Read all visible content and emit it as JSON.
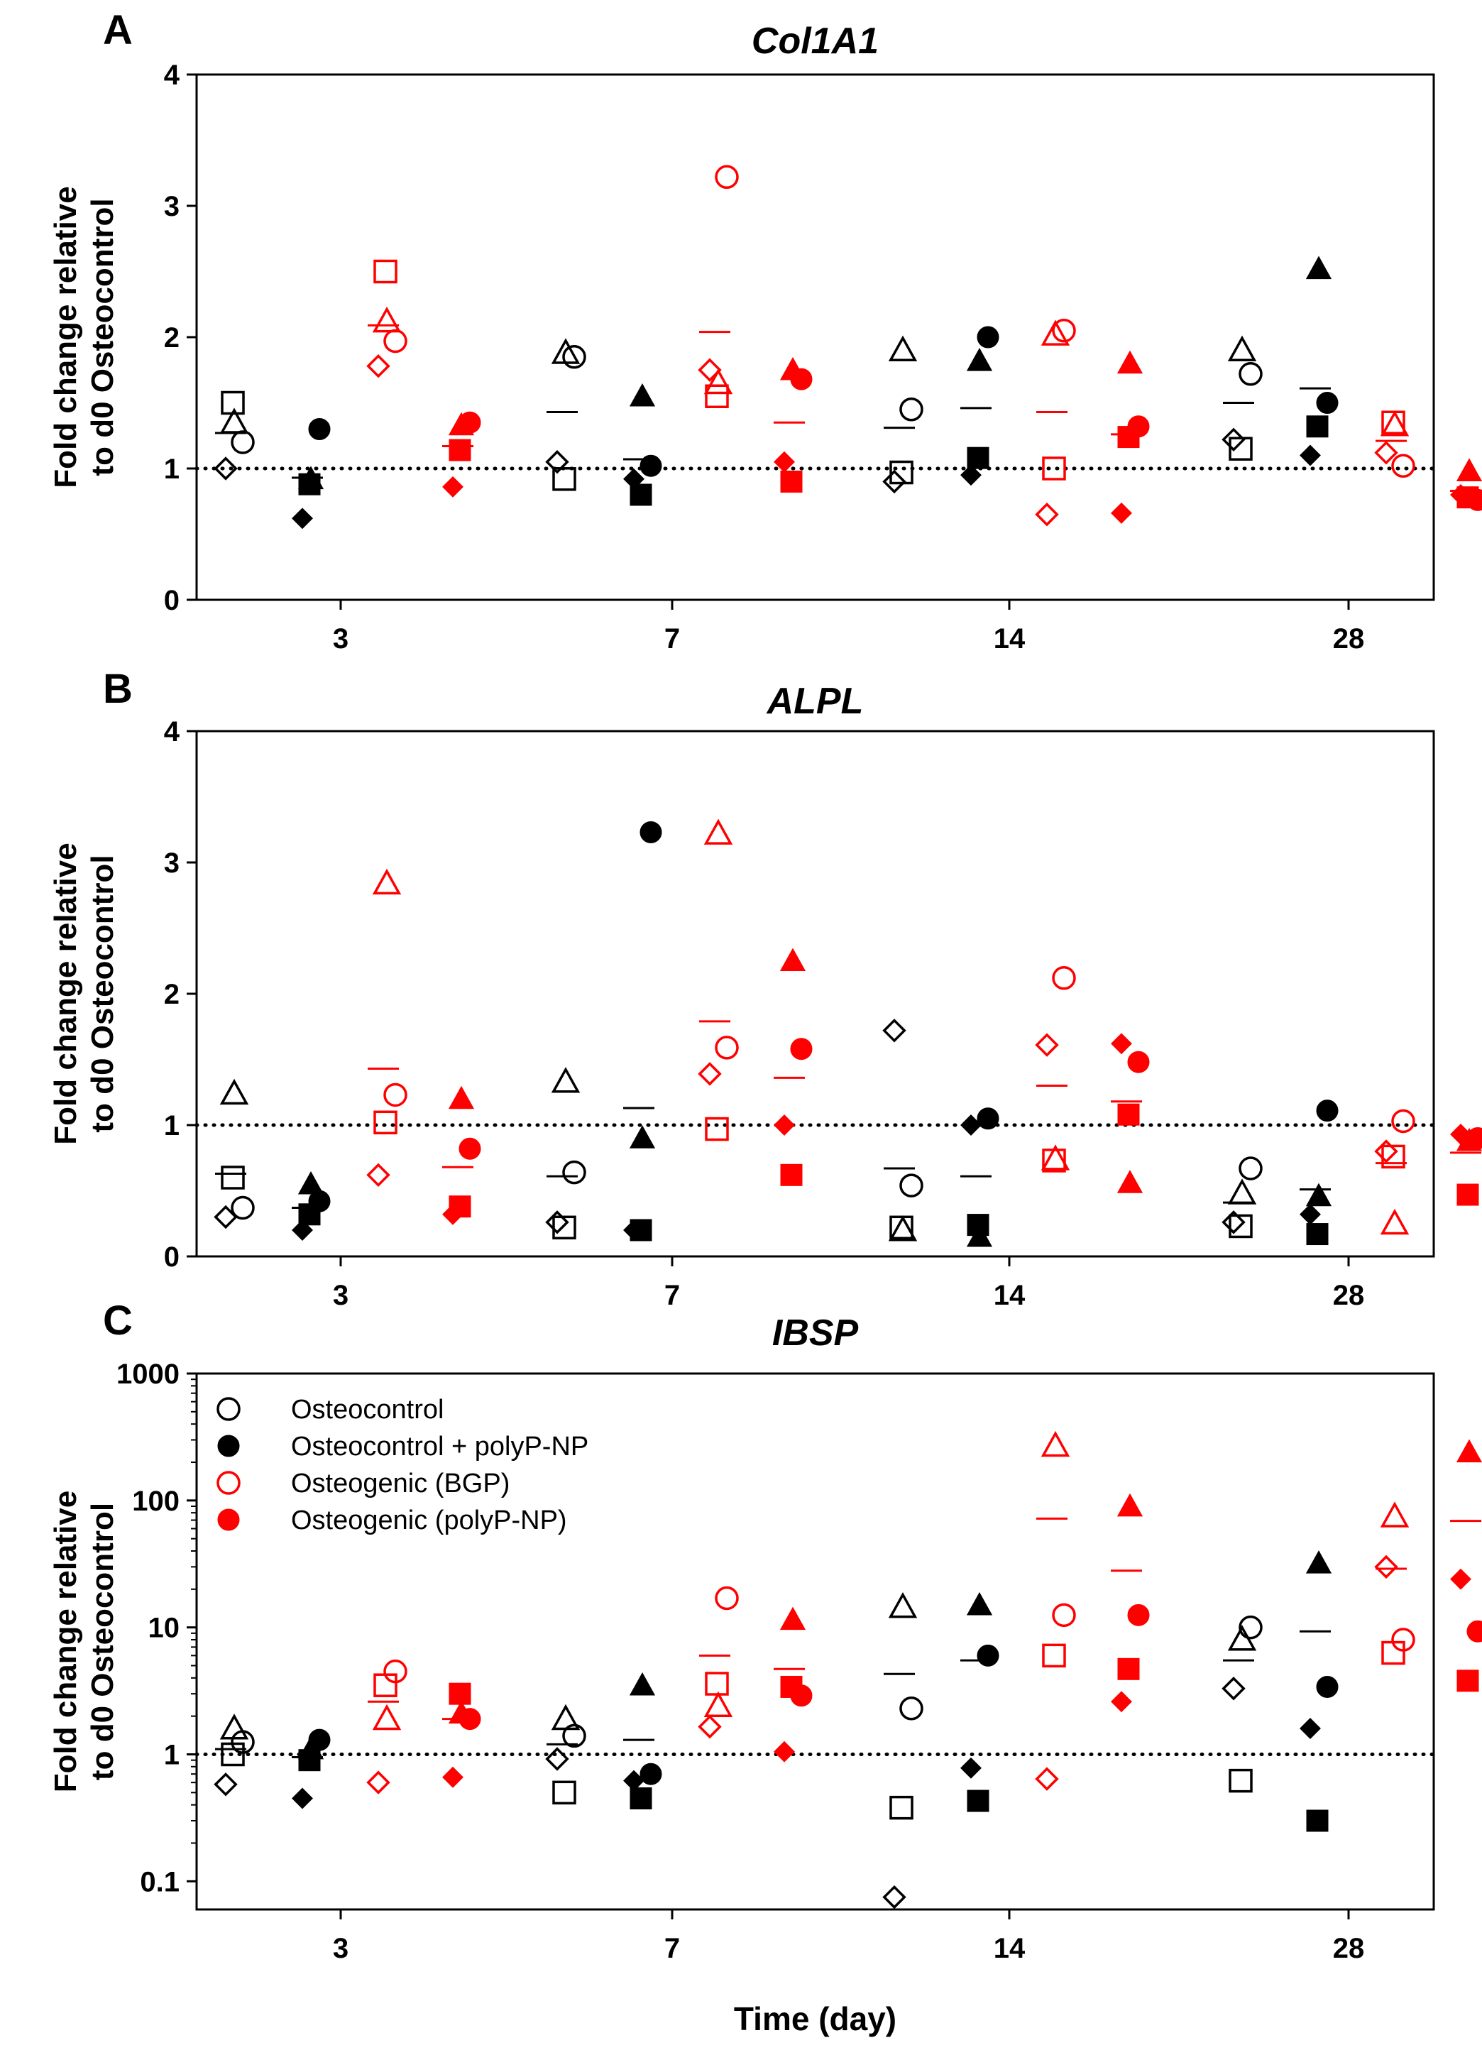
{
  "chart_data": [
    {
      "type": "scatter",
      "panel": "A",
      "title": "Col1A1",
      "ylabel_lines": [
        "Fold change relative",
        "to d0 Osteocontrol"
      ],
      "scale": "linear",
      "ylim": [
        0,
        4
      ],
      "yticks": [
        0,
        1,
        2,
        3,
        4
      ],
      "ytick_labels": [
        "0",
        "1",
        "2",
        "3",
        "4"
      ],
      "categories": [
        "3",
        "7",
        "14",
        "28"
      ],
      "reference_line": 1,
      "series": [
        {
          "name": "Osteocontrol",
          "color": "#000000",
          "filled": false,
          "points": [
            [
              [
                1.0,
                1.35,
                1.2,
                1.5
              ],
              1.27
            ],
            [
              [
                1.05,
                1.88,
                1.85,
                0.92
              ],
              1.43
            ],
            [
              [
                0.9,
                1.9,
                1.45,
                0.97
              ],
              1.31
            ],
            [
              [
                1.22,
                1.9,
                1.72,
                1.15
              ],
              1.5
            ]
          ]
        },
        {
          "name": "Osteocontrol + polyP-NP",
          "color": "#000000",
          "filled": true,
          "points": [
            [
              [
                0.62,
                0.92,
                1.3,
                0.88
              ],
              0.93
            ],
            [
              [
                0.92,
                1.55,
                1.02,
                0.8
              ],
              1.07
            ],
            [
              [
                0.95,
                1.82,
                2.0,
                1.08
              ],
              1.46
            ],
            [
              [
                1.1,
                2.52,
                1.5,
                1.32
              ],
              1.61
            ]
          ]
        },
        {
          "name": "Osteogenic (BGP)",
          "color": "#ff0000",
          "filled": false,
          "points": [
            [
              [
                1.78,
                2.12,
                1.97,
                2.5
              ],
              2.09
            ],
            [
              [
                1.75,
                1.65,
                3.22,
                1.55
              ],
              2.04
            ],
            [
              [
                0.65,
                2.02,
                2.05,
                1.0
              ],
              1.43
            ],
            [
              [
                1.12,
                1.33,
                1.02,
                1.35
              ],
              1.21
            ]
          ]
        },
        {
          "name": "Osteogenic (polyP-NP)",
          "color": "#ff0000",
          "filled": true,
          "points": [
            [
              [
                0.86,
                1.33,
                1.35,
                1.14
              ],
              1.17
            ],
            [
              [
                1.05,
                1.75,
                1.68,
                0.9
              ],
              1.35
            ],
            [
              [
                0.66,
                1.8,
                1.32,
                1.24
              ],
              1.26
            ],
            [
              [
                0.8,
                0.98,
                0.76,
                0.78
              ],
              0.83
            ]
          ]
        }
      ]
    },
    {
      "type": "scatter",
      "panel": "B",
      "title": "ALPL",
      "ylabel_lines": [
        "Fold change relative",
        "to d0 Osteocontrol"
      ],
      "scale": "linear",
      "ylim": [
        0,
        4
      ],
      "yticks": [
        0,
        1,
        2,
        3,
        4
      ],
      "ytick_labels": [
        "0",
        "1",
        "2",
        "3",
        "4"
      ],
      "categories": [
        "3",
        "7",
        "14",
        "28"
      ],
      "reference_line": 1,
      "series": [
        {
          "name": "Osteocontrol",
          "color": "#000000",
          "filled": false,
          "points": [
            [
              [
                0.3,
                1.24,
                0.37,
                0.6
              ],
              0.63
            ],
            [
              [
                0.26,
                1.33,
                0.64,
                0.22
              ],
              0.61
            ],
            [
              [
                1.72,
                0.2,
                0.54,
                0.22
              ],
              0.67
            ],
            [
              [
                0.26,
                0.48,
                0.67,
                0.23
              ],
              0.41
            ]
          ]
        },
        {
          "name": "Osteocontrol + polyP-NP",
          "color": "#000000",
          "filled": true,
          "points": [
            [
              [
                0.2,
                0.55,
                0.42,
                0.32
              ],
              0.37
            ],
            [
              [
                0.2,
                0.9,
                3.23,
                0.2
              ],
              1.13
            ],
            [
              [
                1.0,
                0.15,
                1.05,
                0.24
              ],
              0.61
            ],
            [
              [
                0.32,
                0.46,
                1.11,
                0.17
              ],
              0.51
            ]
          ]
        },
        {
          "name": "Osteogenic (BGP)",
          "color": "#ff0000",
          "filled": false,
          "points": [
            [
              [
                0.62,
                2.84,
                1.23,
                1.02
              ],
              1.43
            ],
            [
              [
                1.39,
                3.22,
                1.59,
                0.97
              ],
              1.79
            ],
            [
              [
                1.61,
                0.74,
                2.12,
                0.73
              ],
              1.3
            ],
            [
              [
                0.8,
                0.25,
                1.03,
                0.76
              ],
              0.71
            ]
          ]
        },
        {
          "name": "Osteogenic (polyP-NP)",
          "color": "#ff0000",
          "filled": true,
          "points": [
            [
              [
                0.32,
                1.2,
                0.82,
                0.38
              ],
              0.68
            ],
            [
              [
                1.0,
                2.25,
                1.58,
                0.62
              ],
              1.36
            ],
            [
              [
                1.62,
                0.56,
                1.48,
                1.08
              ],
              1.18
            ],
            [
              [
                0.93,
                0.88,
                0.9,
                0.47
              ],
              0.79
            ]
          ]
        }
      ]
    },
    {
      "type": "scatter",
      "panel": "C",
      "title": "IBSP",
      "ylabel_lines": [
        "Fold change relative",
        "to d0 Osteocontrol"
      ],
      "xlabel": "Time (day)",
      "scale": "log",
      "ylim": [
        0.06,
        1000
      ],
      "yticks": [
        0.1,
        1,
        10,
        100,
        1000
      ],
      "ytick_labels": [
        "0.1",
        "1",
        "10",
        "100",
        "1000"
      ],
      "categories": [
        "3",
        "7",
        "14",
        "28"
      ],
      "reference_line": 1,
      "series": [
        {
          "name": "Osteocontrol",
          "color": "#000000",
          "filled": false,
          "points": [
            [
              [
                0.58,
                1.6,
                1.25,
                1.0
              ],
              1.1
            ],
            [
              [
                0.92,
                1.9,
                1.4,
                0.5
              ],
              1.2
            ],
            [
              [
                0.075,
                14.5,
                2.3,
                0.38
              ],
              4.3
            ],
            [
              [
                3.3,
                8.0,
                10.0,
                0.62
              ],
              5.5
            ]
          ]
        },
        {
          "name": "Osteocontrol + polyP-NP",
          "color": "#000000",
          "filled": true,
          "points": [
            [
              [
                0.45,
                1.1,
                1.3,
                0.9
              ],
              0.95
            ],
            [
              [
                0.62,
                3.5,
                0.7,
                0.45
              ],
              1.3
            ],
            [
              [
                0.78,
                15.0,
                6.0,
                0.43
              ],
              5.5
            ],
            [
              [
                1.6,
                32.0,
                3.4,
                0.3
              ],
              9.3
            ]
          ]
        },
        {
          "name": "Osteogenic (BGP)",
          "color": "#ff0000",
          "filled": false,
          "points": [
            [
              [
                0.6,
                1.9,
                4.5,
                3.5
              ],
              2.6
            ],
            [
              [
                1.65,
                2.4,
                17.0,
                3.6
              ],
              6.0
            ],
            [
              [
                0.64,
                270.0,
                12.5,
                6.0
              ],
              72.0
            ],
            [
              [
                30.0,
                75.0,
                8.0,
                6.3
              ],
              29.0
            ]
          ]
        },
        {
          "name": "Osteogenic (polyP-NP)",
          "color": "#ff0000",
          "filled": true,
          "points": [
            [
              [
                0.66,
                2.1,
                1.9,
                3.0
              ],
              1.9
            ],
            [
              [
                1.05,
                11.5,
                2.9,
                3.4
              ],
              4.7
            ],
            [
              [
                2.6,
                90.0,
                12.5,
                4.7
              ],
              28.0
            ],
            [
              [
                24.0,
                240.0,
                9.3,
                3.8
              ],
              69.0
            ]
          ]
        }
      ]
    }
  ],
  "legend": {
    "entries": [
      {
        "label": "Osteocontrol",
        "color": "#000000",
        "filled": false
      },
      {
        "label": "Osteocontrol + polyP-NP",
        "color": "#000000",
        "filled": true
      },
      {
        "label": "Osteogenic (BGP)",
        "color": "#ff0000",
        "filled": false
      },
      {
        "label": "Osteogenic (polyP-NP)",
        "color": "#ff0000",
        "filled": true
      }
    ]
  }
}
